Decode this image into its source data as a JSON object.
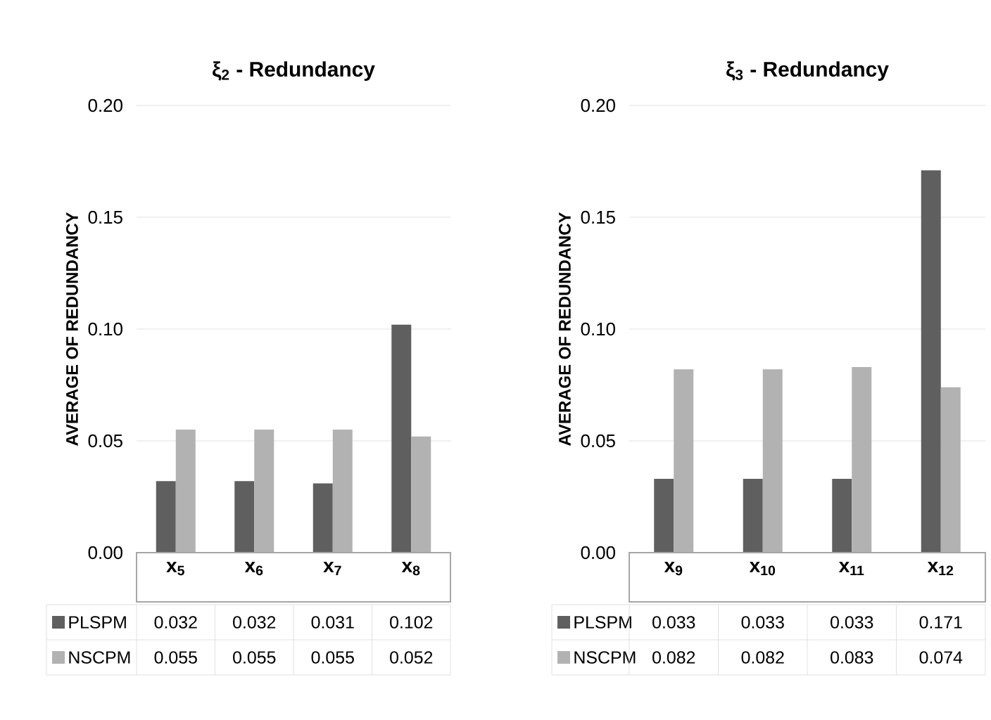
{
  "chart_data": [
    {
      "type": "bar",
      "title": "ξ$_{2}$ **- Redundancy**",
      "ylabel": "AVERAGE OF REDUNDANCY",
      "categories": [
        "x$_{5}$",
        "x$_{6}$",
        "x$_{7}$",
        "x$_{8}$"
      ],
      "series": [
        {
          "name": "PLSPM",
          "color": "#5f5f5f",
          "values": [
            0.032,
            0.032,
            0.031,
            0.102
          ]
        },
        {
          "name": "NSCPM",
          "color": "#b2b2b2",
          "values": [
            0.055,
            0.055,
            0.055,
            0.052
          ]
        }
      ],
      "ylim": [
        0,
        0.2
      ],
      "yticks": [
        {
          "value": 0,
          "label": "0.00"
        },
        {
          "value": 0.05,
          "label": "0.05"
        },
        {
          "value": 0.1,
          "label": "0.10"
        },
        {
          "value": 0.15,
          "label": "0.15"
        },
        {
          "value": 0.2,
          "label": "0.20"
        }
      ],
      "grid": "y",
      "data_labels": true,
      "legend": "bottom"
    },
    {
      "type": "bar",
      "title": "ξ$_{3}$  **- Redundancy**",
      "ylabel": "AVERAGE OF REDUNDANCY",
      "categories": [
        "x$_{9}$",
        "x$_{10}$",
        "x$_{11}$",
        "x$_{12}$"
      ],
      "series": [
        {
          "name": "PLSPM",
          "color": "#5f5f5f",
          "values": [
            0.033,
            0.033,
            0.033,
            0.171
          ]
        },
        {
          "name": "NSCPM",
          "color": "#b2b2b2",
          "values": [
            0.082,
            0.082,
            0.083,
            0.074
          ]
        }
      ],
      "ylim": [
        0,
        0.2
      ],
      "yticks": [
        {
          "value": 0,
          "label": "0.00"
        },
        {
          "value": 0.05,
          "label": "0.05"
        },
        {
          "value": 0.1,
          "label": "0.10"
        },
        {
          "value": 0.15,
          "label": "0.15"
        },
        {
          "value": 0.2,
          "label": "0.20"
        }
      ],
      "grid": "y",
      "data_labels": true,
      "legend": "bottom"
    }
  ]
}
